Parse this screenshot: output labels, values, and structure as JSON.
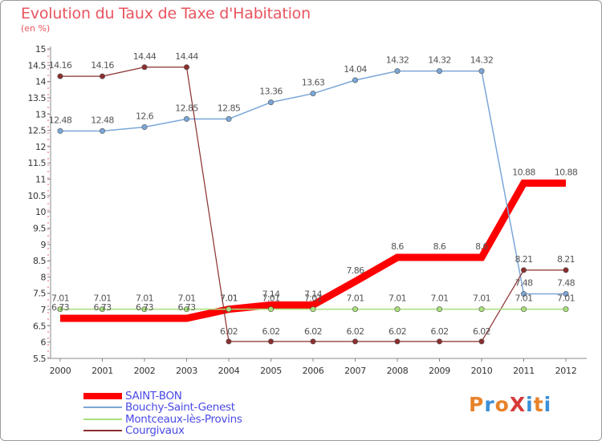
{
  "title": "Evolution du Taux de Taxe d'Habitation",
  "subtitle": "(en %)",
  "logo": {
    "text": "ProXiti",
    "colors": [
      "#e8832a",
      "#3a8fd8",
      "#e8832a",
      "#d83a3a",
      "#3a8fd8",
      "#e8832a",
      "#3a8fd8"
    ]
  },
  "chart_data": {
    "type": "line",
    "title": "Evolution du Taux de Taxe d'Habitation",
    "ylabel": "(en %)",
    "xlabel": "",
    "categories": [
      "2000",
      "2001",
      "2002",
      "2003",
      "2004",
      "2005",
      "2006",
      "2007",
      "2008",
      "2009",
      "2010",
      "2011",
      "2012"
    ],
    "ylim": [
      5.5,
      15
    ],
    "yticks": [
      "5.5",
      "6",
      "6.5",
      "7",
      "7.5",
      "8",
      "8.5",
      "9",
      "9.5",
      "10",
      "10.5",
      "11",
      "11.5",
      "12",
      "12.5",
      "13",
      "13.5",
      "14",
      "14.5",
      "15"
    ],
    "grid": false,
    "legend_position": "bottom-left",
    "series": [
      {
        "name": "SAINT-BON",
        "color": "#ff0000",
        "width": 9,
        "values": [
          6.73,
          6.73,
          6.73,
          6.73,
          7.01,
          7.14,
          7.14,
          7.86,
          8.6,
          8.6,
          8.6,
          10.88,
          10.88
        ],
        "labels": [
          "6.73",
          "6.73",
          "6.73",
          "6.73",
          "7.01",
          "7.14",
          "7.14",
          "7.86",
          "8.6",
          "8.6",
          "8.6",
          "10.88",
          "10.88"
        ]
      },
      {
        "name": "Bouchy-Saint-Genest",
        "color": "#7ba7d8",
        "width": 1.5,
        "values": [
          12.48,
          12.48,
          12.6,
          12.85,
          12.85,
          13.36,
          13.63,
          14.04,
          14.32,
          14.32,
          14.32,
          7.48,
          7.48
        ],
        "labels": [
          "12.48",
          "12.48",
          "12.6",
          "12.85",
          "12.85",
          "13.36",
          "13.63",
          "14.04",
          "14.32",
          "14.32",
          "14.32",
          "7.48",
          "7.48"
        ]
      },
      {
        "name": "Montceaux-lès-Provins",
        "color": "#a8e07a",
        "width": 1.5,
        "values": [
          7.01,
          7.01,
          7.01,
          7.01,
          7.01,
          7.01,
          7.01,
          7.01,
          7.01,
          7.01,
          7.01,
          7.01,
          7.01
        ],
        "labels": [
          "7.01",
          "7.01",
          "7.01",
          "7.01",
          "7.01",
          "7.01",
          "7.01",
          "7.01",
          "7.01",
          "7.01",
          "7.01",
          "7.01",
          "7.01"
        ]
      },
      {
        "name": "Courgivaux",
        "color": "#8b2e2e",
        "width": 1.2,
        "values": [
          14.16,
          14.16,
          14.44,
          14.44,
          6.02,
          6.02,
          6.02,
          6.02,
          6.02,
          6.02,
          6.02,
          8.21,
          8.21
        ],
        "labels": [
          "14.16",
          "14.16",
          "14.44",
          "14.44",
          "6.02",
          "6.02",
          "6.02",
          "6.02",
          "6.02",
          "6.02",
          "6.02",
          "8.21",
          "8.21"
        ]
      }
    ]
  }
}
